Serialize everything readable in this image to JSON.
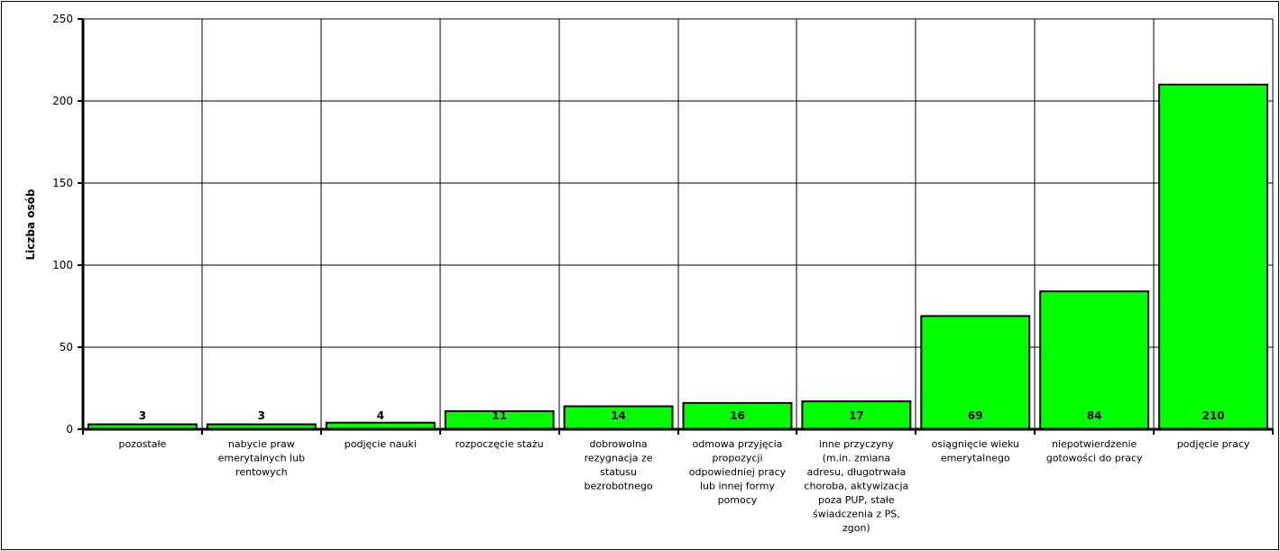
{
  "chart_data": {
    "type": "bar",
    "ylabel": "Liczba osób",
    "ylim": [
      0,
      250
    ],
    "yticks": [
      0,
      50,
      100,
      150,
      200,
      250
    ],
    "grid": true,
    "bar_color": "#00ff00",
    "categories": [
      [
        "pozostałe"
      ],
      [
        "nabycie praw",
        "emerytalnych lub",
        "rentowych"
      ],
      [
        "podjęcie nauki"
      ],
      [
        "rozpoczęcie stażu"
      ],
      [
        "dobrowolna",
        "rezygnacja ze",
        "statusu",
        "bezrobotnego"
      ],
      [
        "odmowa przyjęcia",
        "propozycji",
        "odpowiedniej pracy",
        "lub innej formy",
        "pomocy"
      ],
      [
        "inne przyczyny",
        "(m.in. zmiana",
        "adresu, długotrwała",
        "choroba, aktywizacja",
        "poza PUP, stałe",
        "świadczenia z PS,",
        "zgon)"
      ],
      [
        "osiągnięcie wieku",
        "emerytalnego"
      ],
      [
        "niepotwierdzenie",
        "gotowości do pracy"
      ],
      [
        "podjęcie pracy"
      ]
    ],
    "values": [
      3,
      3,
      4,
      11,
      14,
      16,
      17,
      69,
      84,
      210
    ]
  }
}
